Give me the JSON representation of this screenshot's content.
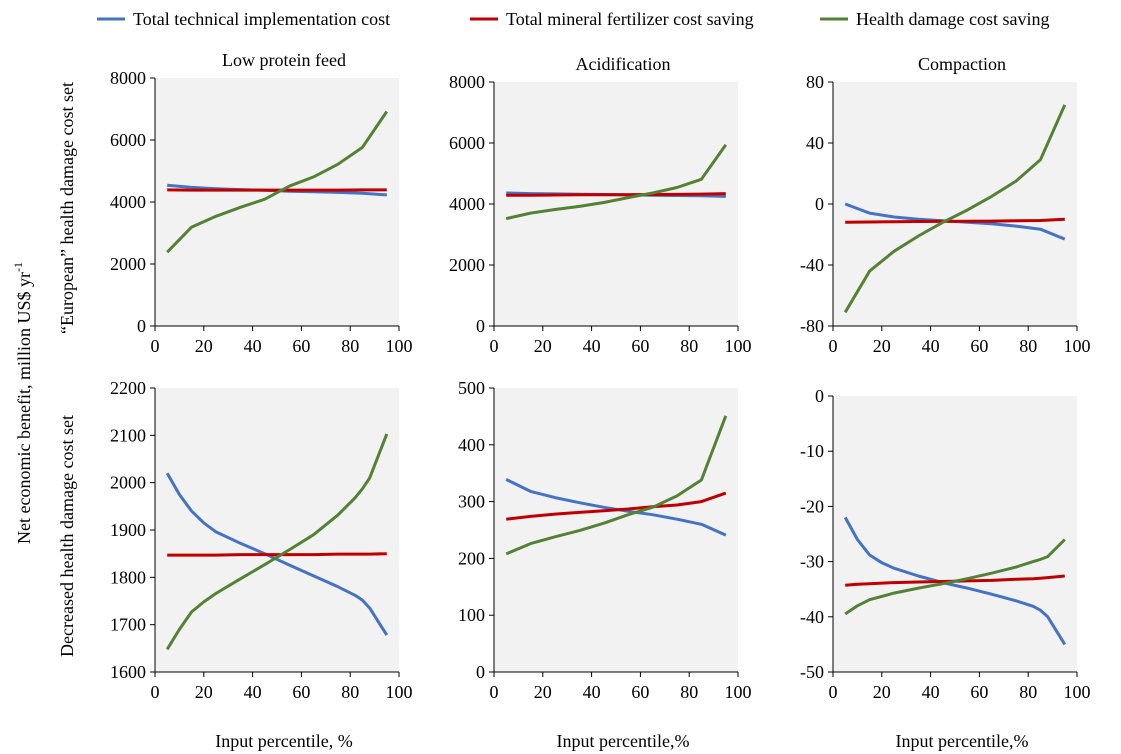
{
  "legend": {
    "items": [
      {
        "label": "Total technical implementation cost",
        "color": "#4472C4"
      },
      {
        "label": "Total mineral fertilizer cost saving",
        "color": "#C00000"
      },
      {
        "label": "Health damage cost saving",
        "color": "#548235"
      }
    ]
  },
  "y_axis_title": {
    "main": "Net economic benefit, million US$ yr",
    "sup": "-1",
    "row1": "“European” health damage cost set",
    "row2": "Decreased health damage cost set"
  },
  "x_axis_titles": [
    "Input percentile, %",
    "Input percentile,%",
    "Input percentile,%"
  ],
  "panel_titles": [
    "Low protein feed",
    "Acidification",
    "Compaction"
  ],
  "chart_data": [
    {
      "type": "line",
      "title": "Low protein feed",
      "xlabel": "",
      "ylabel": "“European” health damage cost set",
      "xlim": [
        0,
        100
      ],
      "ylim": [
        0,
        8000
      ],
      "xticks": [
        "0",
        "20",
        "40",
        "60",
        "80",
        "100"
      ],
      "yticks": [
        "0",
        "2000",
        "4000",
        "6000",
        "8000"
      ],
      "grid": false,
      "x": [
        5,
        15,
        25,
        35,
        45,
        55,
        65,
        75,
        85,
        95
      ],
      "series": [
        {
          "name": "Total technical implementation cost",
          "values": [
            4540,
            4470,
            4430,
            4400,
            4380,
            4350,
            4330,
            4310,
            4280,
            4230
          ]
        },
        {
          "name": "Total mineral fertilizer cost saving",
          "values": [
            4390,
            4385,
            4385,
            4385,
            4385,
            4385,
            4385,
            4385,
            4390,
            4390
          ]
        },
        {
          "name": "Health damage cost saving",
          "values": [
            2380,
            3190,
            3540,
            3830,
            4090,
            4510,
            4810,
            5220,
            5760,
            6920
          ]
        }
      ]
    },
    {
      "type": "line",
      "title": "Acidification",
      "xlabel": "",
      "ylabel": "",
      "xlim": [
        0,
        100
      ],
      "ylim": [
        0,
        8000
      ],
      "xticks": [
        "0",
        "20",
        "40",
        "60",
        "80",
        "100"
      ],
      "yticks": [
        "0",
        "2000",
        "4000",
        "6000",
        "8000"
      ],
      "grid": false,
      "x": [
        5,
        15,
        25,
        35,
        45,
        55,
        65,
        75,
        85,
        95
      ],
      "series": [
        {
          "name": "Total technical implementation cost",
          "values": [
            4360,
            4340,
            4330,
            4320,
            4310,
            4300,
            4290,
            4280,
            4270,
            4250
          ]
        },
        {
          "name": "Total mineral fertilizer cost saving",
          "values": [
            4290,
            4290,
            4295,
            4300,
            4300,
            4305,
            4310,
            4315,
            4325,
            4340
          ]
        },
        {
          "name": "Health damage cost saving",
          "values": [
            3520,
            3700,
            3820,
            3920,
            4050,
            4210,
            4360,
            4540,
            4810,
            5940
          ]
        }
      ]
    },
    {
      "type": "line",
      "title": "Compaction",
      "xlabel": "",
      "ylabel": "",
      "xlim": [
        0,
        100
      ],
      "ylim": [
        -80,
        80
      ],
      "xticks": [
        "0",
        "20",
        "40",
        "60",
        "80",
        "100"
      ],
      "yticks": [
        "-80",
        "-40",
        "0",
        "40",
        "80"
      ],
      "grid": false,
      "x": [
        5,
        15,
        25,
        35,
        45,
        55,
        65,
        75,
        85,
        95
      ],
      "series": [
        {
          "name": "Total technical implementation cost",
          "values": [
            0,
            -6,
            -8.5,
            -10,
            -11,
            -12,
            -13,
            -14.5,
            -16.5,
            -23
          ]
        },
        {
          "name": "Total mineral fertilizer cost saving",
          "values": [
            -12,
            -11.8,
            -11.6,
            -11.5,
            -11.4,
            -11.3,
            -11.2,
            -11,
            -10.8,
            -10
          ]
        },
        {
          "name": "Health damage cost saving",
          "values": [
            -71,
            -44,
            -31,
            -21,
            -12,
            -4,
            5,
            15,
            29,
            65
          ]
        }
      ]
    },
    {
      "type": "line",
      "title": "",
      "xlabel": "Input percentile, %",
      "ylabel": "Decreased health damage cost set",
      "xlim": [
        0,
        100
      ],
      "ylim": [
        1600,
        2200
      ],
      "xticks": [
        "0",
        "20",
        "40",
        "60",
        "80",
        "100"
      ],
      "yticks": [
        "1600",
        "1700",
        "1800",
        "1900",
        "2000",
        "2100",
        "2200"
      ],
      "grid": false,
      "x": [
        5,
        10,
        15,
        20,
        25,
        35,
        45,
        55,
        65,
        75,
        82,
        85,
        88,
        95
      ],
      "series": [
        {
          "name": "Total technical implementation cost",
          "values": [
            2020,
            1975,
            1940,
            1915,
            1896,
            1872,
            1850,
            1826,
            1803,
            1780,
            1762,
            1752,
            1735,
            1678
          ]
        },
        {
          "name": "Total mineral fertilizer cost saving",
          "values": [
            1847,
            1847,
            1847,
            1847,
            1847,
            1848,
            1848,
            1848,
            1848,
            1849,
            1849,
            1849,
            1849,
            1850
          ]
        },
        {
          "name": "Health damage cost saving",
          "values": [
            1648,
            1690,
            1727,
            1748,
            1766,
            1797,
            1827,
            1858,
            1890,
            1932,
            1968,
            1987,
            2010,
            2103
          ]
        }
      ]
    },
    {
      "type": "line",
      "title": "",
      "xlabel": "Input percentile,%",
      "ylabel": "",
      "xlim": [
        0,
        100
      ],
      "ylim": [
        0,
        500
      ],
      "xticks": [
        "0",
        "20",
        "40",
        "60",
        "80",
        "100"
      ],
      "yticks": [
        "0",
        "100",
        "200",
        "300",
        "400",
        "500"
      ],
      "grid": false,
      "x": [
        5,
        15,
        25,
        35,
        45,
        55,
        65,
        75,
        85,
        95
      ],
      "series": [
        {
          "name": "Total technical implementation cost",
          "values": [
            339,
            318,
            307,
            298,
            290,
            283,
            277,
            269,
            260,
            241
          ]
        },
        {
          "name": "Total mineral fertilizer cost saving",
          "values": [
            269,
            274,
            278,
            281,
            284,
            287,
            291,
            294,
            300,
            315
          ]
        },
        {
          "name": "Health damage cost saving",
          "values": [
            208,
            226,
            238,
            249,
            262,
            277,
            290,
            310,
            338,
            451
          ]
        }
      ]
    },
    {
      "type": "line",
      "title": "",
      "xlabel": "Input percentile,%",
      "ylabel": "",
      "xlim": [
        0,
        100
      ],
      "ylim": [
        -50,
        0
      ],
      "xticks": [
        "0",
        "20",
        "40",
        "60",
        "80",
        "100"
      ],
      "yticks": [
        "-50",
        "-40",
        "-30",
        "-20",
        "-10",
        "0"
      ],
      "grid": false,
      "x": [
        5,
        10,
        15,
        20,
        25,
        35,
        45,
        55,
        65,
        75,
        82,
        85,
        88,
        95
      ],
      "series": [
        {
          "name": "Total technical implementation cost",
          "values": [
            -22,
            -26,
            -28.8,
            -30.2,
            -31.2,
            -32.6,
            -33.8,
            -34.8,
            -35.9,
            -37.1,
            -38.1,
            -38.8,
            -40,
            -45
          ]
        },
        {
          "name": "Total mineral fertilizer cost saving",
          "values": [
            -34.3,
            -34.1,
            -34,
            -33.9,
            -33.8,
            -33.7,
            -33.6,
            -33.5,
            -33.4,
            -33.2,
            -33.1,
            -33,
            -32.9,
            -32.6
          ]
        },
        {
          "name": "Health damage cost saving",
          "values": [
            -39.5,
            -38,
            -36.9,
            -36.3,
            -35.7,
            -34.8,
            -34,
            -33.1,
            -32.1,
            -31,
            -30,
            -29.6,
            -29.1,
            -26
          ]
        }
      ]
    }
  ]
}
